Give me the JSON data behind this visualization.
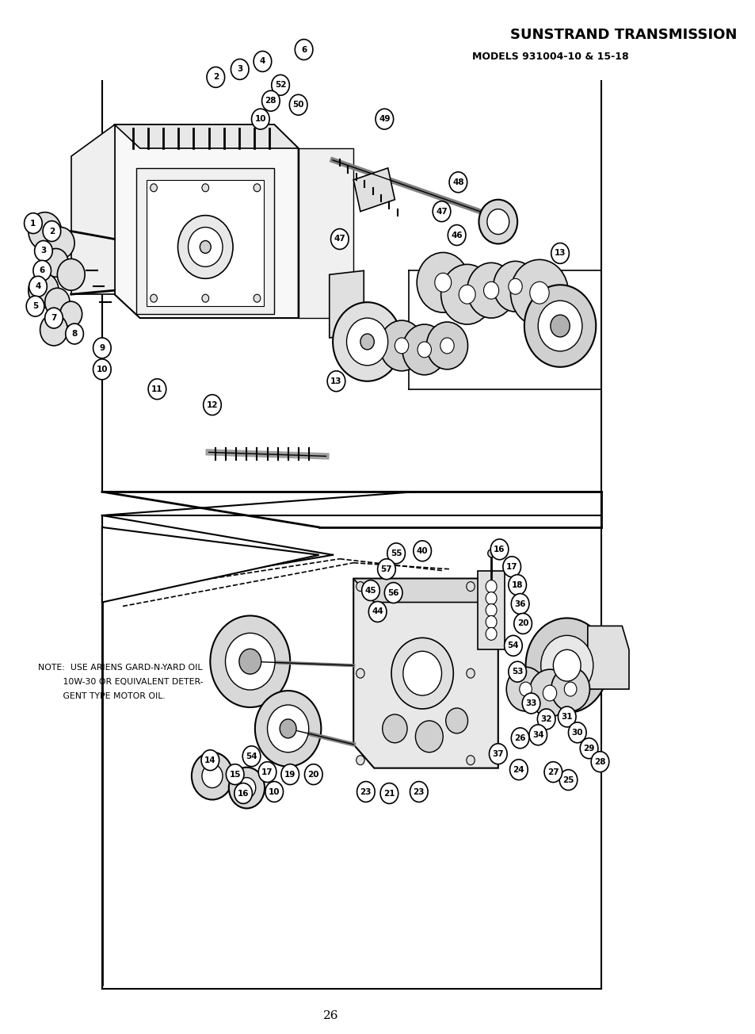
{
  "title": "SUNSTRAND TRANSMISSION",
  "subtitle": "MODELS 931004-10 & 15-18",
  "page_number": "26",
  "note_line1": "NOTE:  USE ARIENS GARD-N-YARD OIL",
  "note_line2": "         10W-30 OR EQUIVALENT DETER-",
  "note_line3": "         GENT TYPE MOTOR OIL.",
  "bg_color": "#ffffff",
  "text_color": "#000000",
  "fig_width": 9.54,
  "fig_height": 13.04,
  "dpi": 100
}
